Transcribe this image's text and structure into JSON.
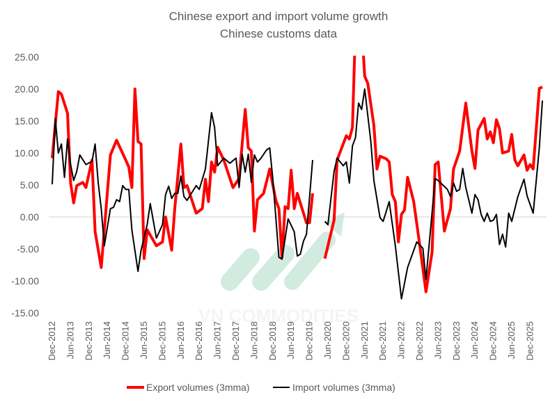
{
  "chart_data": {
    "type": "line",
    "title": "Chinese export and import volume growth",
    "subtitle": "Chinese customs data",
    "xlabel": "",
    "ylabel": "",
    "x_unit": "months since Dec-2012",
    "ylim": [
      -15,
      25
    ],
    "yticks": [
      "25.00",
      "20.00",
      "15.00",
      "10.00",
      "5.00",
      "0.00",
      "-5.00",
      "-10.00",
      "-15.00"
    ],
    "ytick_values": [
      25,
      20,
      15,
      10,
      5,
      0,
      -5,
      -10,
      -15
    ],
    "xticks": [
      "Dec-2012",
      "Jun-2013",
      "Dec-2013",
      "Jun-2014",
      "Dec-2014",
      "Jun-2015",
      "Dec-2015",
      "Jun-2016",
      "Dec-2016",
      "Jun-2017",
      "Dec-2017",
      "Jun-2018",
      "Dec-2018",
      "Jun-2019",
      "Dec-2019",
      "Jun-2020",
      "Dec-2020",
      "Jun-2021",
      "Dec-2021",
      "Jun-2022",
      "Dec-2022",
      "Jun-2023",
      "Dec-2023",
      "Jun-2024",
      "Dec-2024",
      "Jun-2025",
      "Dec-2025"
    ],
    "grid": false,
    "legend_position": "bottom",
    "watermark": "VN COMMODITIES",
    "series": [
      {
        "name": "Export volumes (3mma)",
        "color": "#ff0000",
        "points": [
          [
            0,
            9.2
          ],
          [
            2,
            19.6
          ],
          [
            3,
            19.2
          ],
          [
            5,
            16.2
          ],
          [
            6,
            5.3
          ],
          [
            7,
            2.2
          ],
          [
            8,
            4.9
          ],
          [
            10,
            5.4
          ],
          [
            11,
            4.6
          ],
          [
            13,
            8.9
          ],
          [
            14,
            -2.3
          ],
          [
            16,
            -7.9
          ],
          [
            19,
            9.7
          ],
          [
            21,
            12.0
          ],
          [
            24,
            8.9
          ],
          [
            25,
            7.8
          ],
          [
            26,
            4.6
          ],
          [
            27,
            20.0
          ],
          [
            28,
            11.8
          ],
          [
            29,
            11.4
          ],
          [
            30,
            -6.5
          ],
          [
            31,
            -2.0
          ],
          [
            34,
            -4.5
          ],
          [
            36,
            -3.9
          ],
          [
            37,
            0
          ],
          [
            39,
            -5.2
          ],
          [
            40,
            1.3
          ],
          [
            42,
            11.4
          ],
          [
            43,
            4.6
          ],
          [
            44,
            4.9
          ],
          [
            47,
            0.6
          ],
          [
            49,
            1.3
          ],
          [
            50,
            5.9
          ],
          [
            51,
            2.4
          ],
          [
            52,
            8.6
          ],
          [
            53,
            7.0
          ],
          [
            54,
            10.9
          ],
          [
            56,
            8.9
          ],
          [
            59,
            4.6
          ],
          [
            61,
            6.0
          ],
          [
            63,
            16.8
          ],
          [
            64,
            10.8
          ],
          [
            65,
            10.3
          ],
          [
            66,
            -2.2
          ],
          [
            67,
            2.7
          ],
          [
            69,
            3.7
          ],
          [
            71,
            7.5
          ],
          [
            73,
            2.6
          ],
          [
            74,
            1.3
          ],
          [
            75,
            -6.3
          ],
          [
            76,
            1.6
          ],
          [
            77,
            1.3
          ],
          [
            78,
            7.3
          ],
          [
            79,
            1.3
          ],
          [
            80,
            3.7
          ],
          [
            83,
            -0.9
          ],
          [
            84,
            -0.9
          ],
          [
            85,
            3.7
          ],
          [
            86,
            null
          ],
          [
            89,
            -6.5
          ],
          [
            92,
            -0.5
          ],
          [
            93,
            8.9
          ],
          [
            96,
            12.7
          ],
          [
            97,
            12.2
          ],
          [
            98,
            14.0
          ],
          [
            99,
            30
          ],
          [
            101,
            30
          ],
          [
            102,
            22.0
          ],
          [
            103,
            20.9
          ],
          [
            105,
            14.3
          ],
          [
            106,
            7.5
          ],
          [
            107,
            9.5
          ],
          [
            109,
            9.1
          ],
          [
            110,
            8.6
          ],
          [
            111,
            3.5
          ],
          [
            112,
            2.4
          ],
          [
            113,
            -3.9
          ],
          [
            114,
            0.4
          ],
          [
            115,
            1.1
          ],
          [
            116,
            6.2
          ],
          [
            118,
            2.4
          ],
          [
            120,
            -4.5
          ],
          [
            122,
            -11.7
          ],
          [
            124,
            -5.5
          ],
          [
            125,
            8.2
          ],
          [
            126,
            8.6
          ],
          [
            128,
            -2.2
          ],
          [
            130,
            1.3
          ],
          [
            131,
            7.5
          ],
          [
            133,
            10.3
          ],
          [
            135,
            17.8
          ],
          [
            137,
            10.3
          ],
          [
            138,
            7.6
          ],
          [
            139,
            13.6
          ],
          [
            141,
            15.4
          ],
          [
            142,
            12.2
          ],
          [
            143,
            13.3
          ],
          [
            144,
            11.6
          ],
          [
            145,
            15.2
          ],
          [
            146,
            13.8
          ],
          [
            147,
            10.0
          ],
          [
            149,
            10.3
          ],
          [
            150,
            12.9
          ],
          [
            151,
            8.9
          ],
          [
            152,
            8.0
          ],
          [
            154,
            9.7
          ],
          [
            155,
            7.3
          ],
          [
            156,
            8.2
          ],
          [
            157,
            7.5
          ],
          [
            159,
            20.1
          ],
          [
            160,
            20.3
          ]
        ]
      },
      {
        "name": "Import volumes (3mma)",
        "color": "#000000",
        "points": [
          [
            0,
            5.1
          ],
          [
            1,
            15.4
          ],
          [
            2,
            10.0
          ],
          [
            3,
            11.4
          ],
          [
            4,
            6.2
          ],
          [
            5,
            12.2
          ],
          [
            6,
            8.2
          ],
          [
            7,
            5.7
          ],
          [
            8,
            7.1
          ],
          [
            9,
            9.7
          ],
          [
            11,
            8.2
          ],
          [
            13,
            8.7
          ],
          [
            14,
            11.4
          ],
          [
            15,
            5.4
          ],
          [
            16,
            1.3
          ],
          [
            17,
            -4.5
          ],
          [
            19,
            1.3
          ],
          [
            20,
            1.5
          ],
          [
            21,
            2.7
          ],
          [
            22,
            2.4
          ],
          [
            23,
            4.9
          ],
          [
            24,
            4.3
          ],
          [
            25,
            4.3
          ],
          [
            26,
            -2.0
          ],
          [
            28,
            -8.5
          ],
          [
            29,
            -5.2
          ],
          [
            31,
            -1.2
          ],
          [
            32,
            2.1
          ],
          [
            34,
            -3.3
          ],
          [
            36,
            -1.2
          ],
          [
            37,
            3.5
          ],
          [
            38,
            4.8
          ],
          [
            39,
            2.9
          ],
          [
            40,
            3.7
          ],
          [
            41,
            3.7
          ],
          [
            42,
            6.4
          ],
          [
            43,
            3.2
          ],
          [
            44,
            2.6
          ],
          [
            47,
            4.9
          ],
          [
            48,
            4.3
          ],
          [
            50,
            7.5
          ],
          [
            52,
            16.3
          ],
          [
            53,
            14.0
          ],
          [
            54,
            8.0
          ],
          [
            56,
            9.2
          ],
          [
            58,
            8.4
          ],
          [
            60,
            9.2
          ],
          [
            61,
            4.6
          ],
          [
            62,
            9.8
          ],
          [
            63,
            7.0
          ],
          [
            64,
            9.8
          ],
          [
            65,
            5.4
          ],
          [
            66,
            9.7
          ],
          [
            67,
            8.6
          ],
          [
            68,
            9.1
          ],
          [
            70,
            10.5
          ],
          [
            71,
            10.8
          ],
          [
            72,
            6.0
          ],
          [
            74,
            -6.3
          ],
          [
            75,
            -6.6
          ],
          [
            77,
            -0.3
          ],
          [
            79,
            -2.3
          ],
          [
            80,
            -6.1
          ],
          [
            81,
            -5.8
          ],
          [
            82,
            -3.8
          ],
          [
            83,
            -2.7
          ],
          [
            85,
            8.9
          ],
          [
            86,
            null
          ],
          [
            89,
            -0.7
          ],
          [
            90,
            -1.2
          ],
          [
            92,
            7.1
          ],
          [
            93,
            9.2
          ],
          [
            95,
            8.0
          ],
          [
            96,
            8.6
          ],
          [
            97,
            5.3
          ],
          [
            98,
            11.1
          ],
          [
            99,
            12.4
          ],
          [
            100,
            17.8
          ],
          [
            101,
            16.8
          ],
          [
            102,
            20.0
          ],
          [
            104,
            11.8
          ],
          [
            105,
            5.7
          ],
          [
            107,
            -0.1
          ],
          [
            108,
            -0.7
          ],
          [
            109,
            0.8
          ],
          [
            110,
            2.4
          ],
          [
            112,
            -4.5
          ],
          [
            114,
            -12.8
          ],
          [
            116,
            -7.9
          ],
          [
            119,
            -3.9
          ],
          [
            121,
            -4.9
          ],
          [
            122,
            -9.8
          ],
          [
            125,
            6.0
          ],
          [
            126,
            5.7
          ],
          [
            129,
            4.3
          ],
          [
            130,
            3.2
          ],
          [
            131,
            5.3
          ],
          [
            132,
            4.0
          ],
          [
            133,
            4.3
          ],
          [
            134,
            7.6
          ],
          [
            135,
            4.6
          ],
          [
            137,
            0.6
          ],
          [
            138,
            3.5
          ],
          [
            139,
            2.7
          ],
          [
            140,
            0.4
          ],
          [
            141,
            -0.7
          ],
          [
            142,
            0.6
          ],
          [
            143,
            -0.7
          ],
          [
            144,
            -0.5
          ],
          [
            145,
            0.4
          ],
          [
            146,
            -4.3
          ],
          [
            147,
            -2.7
          ],
          [
            148,
            -4.7
          ],
          [
            149,
            0.6
          ],
          [
            150,
            -0.7
          ],
          [
            152,
            3.2
          ],
          [
            154,
            5.9
          ],
          [
            155,
            3.3
          ],
          [
            157,
            0.6
          ],
          [
            159,
            10.8
          ],
          [
            160,
            18.2
          ]
        ]
      }
    ]
  }
}
